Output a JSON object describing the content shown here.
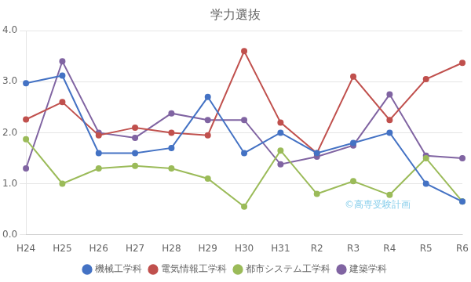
{
  "chart_data": {
    "type": "line",
    "title": "学力選抜",
    "categories": [
      "H24",
      "H25",
      "H26",
      "H27",
      "H28",
      "H29",
      "H30",
      "H31",
      "R2",
      "R3",
      "R4",
      "R5",
      "R6"
    ],
    "series": [
      {
        "name": "機械工学科",
        "color": "#4472C4",
        "values": [
          2.97,
          3.12,
          1.6,
          1.6,
          1.7,
          2.7,
          1.6,
          2.0,
          1.6,
          1.8,
          2.0,
          1.0,
          0.65
        ]
      },
      {
        "name": "電気情報工学科",
        "color": "#C0504D",
        "values": [
          2.26,
          2.6,
          1.95,
          2.1,
          2.0,
          1.95,
          3.6,
          2.2,
          1.6,
          3.1,
          2.25,
          3.05,
          3.37
        ]
      },
      {
        "name": "都市システム工学科",
        "color": "#9BBB59",
        "values": [
          1.87,
          1.0,
          1.3,
          1.35,
          1.3,
          1.1,
          0.55,
          1.65,
          0.8,
          1.05,
          0.78,
          1.5,
          0.65
        ]
      },
      {
        "name": "建築学科",
        "color": "#8064A2",
        "values": [
          1.3,
          3.4,
          2.0,
          1.9,
          2.38,
          2.25,
          2.25,
          1.38,
          1.53,
          1.75,
          2.75,
          1.55,
          1.5
        ]
      }
    ],
    "ylim": [
      0.0,
      4.0
    ],
    "yticks": [
      {
        "value": 0,
        "label": "0.0"
      },
      {
        "value": 1,
        "label": "1.0"
      },
      {
        "value": 2,
        "label": "2.0"
      },
      {
        "value": 3,
        "label": "3.0"
      },
      {
        "value": 4,
        "label": "4.0"
      }
    ],
    "grid": true,
    "legend": "bottom",
    "marker": "circle",
    "annotations": [
      {
        "text": "©高専受験計画",
        "color": "#87CEEB"
      }
    ]
  }
}
